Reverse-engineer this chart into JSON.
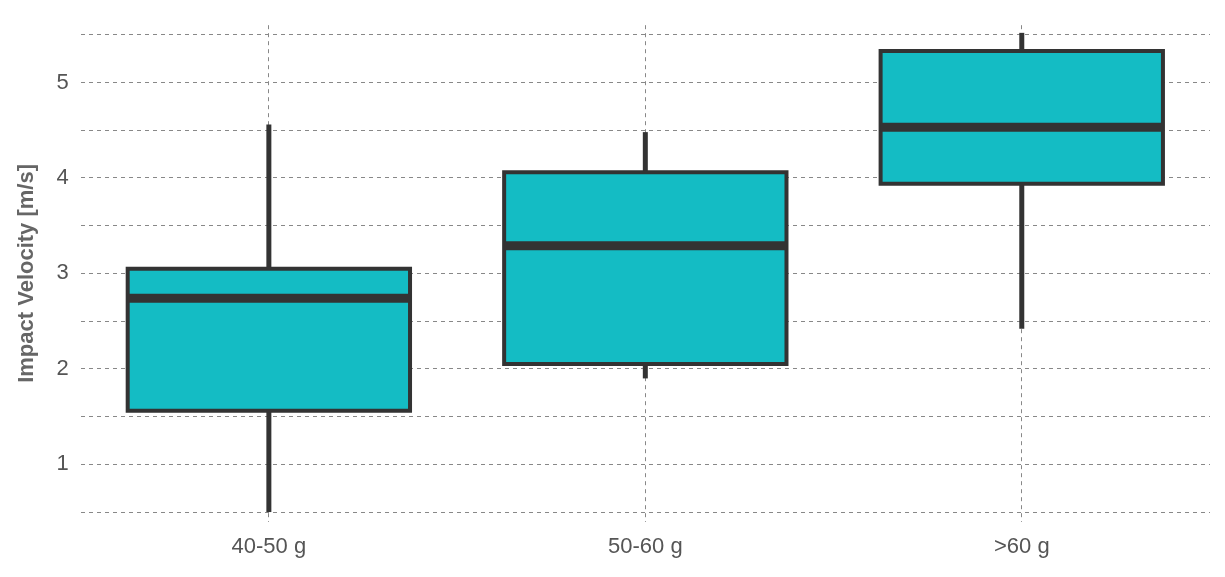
{
  "chart_data": {
    "type": "box",
    "ylabel": "Impact Velocity [m/s]",
    "categories": [
      "40-50 g",
      "50-60 g",
      ">60 g"
    ],
    "color": "#14bcc4",
    "boxes": [
      {
        "low": 0.5,
        "q1": 1.56,
        "median": 2.74,
        "q3": 3.05,
        "high": 4.56
      },
      {
        "low": 1.9,
        "q1": 2.05,
        "median": 3.29,
        "q3": 4.06,
        "high": 4.48
      },
      {
        "low": 2.42,
        "q1": 3.94,
        "median": 4.53,
        "q3": 5.33,
        "high": 5.52
      }
    ],
    "ylim": [
      0.4,
      5.6
    ],
    "yticks": [
      {
        "value": 0.5,
        "label": null
      },
      1,
      {
        "value": 1.5,
        "label": null
      },
      2,
      {
        "value": 2.5,
        "label": null
      },
      3,
      {
        "value": 3.5,
        "label": null
      },
      4,
      {
        "value": 4.5,
        "label": null
      },
      5,
      {
        "value": 5.5,
        "label": null
      }
    ],
    "grid": true,
    "legend": false
  }
}
